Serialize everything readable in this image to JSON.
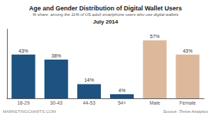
{
  "chart_data": {
    "type": "bar",
    "title": "Age and Gender Distribution of Digital Wallet Users",
    "subtitle": "% share, among the 11% of US adult smartphone users who use digital wallets",
    "annotations": [
      "July 2014",
      "Source: Thrive Analytics",
      "MARKETINGCHARTS.COM"
    ],
    "categories": [
      "18-29",
      "30-43",
      "44-53",
      "54+",
      "Male",
      "Female"
    ],
    "values": [
      43,
      38,
      14,
      4,
      57,
      43
    ],
    "value_labels": [
      "43%",
      "38%",
      "14%",
      "4%",
      "57%",
      "43%"
    ],
    "colors": [
      "#1e5280",
      "#1e5280",
      "#1e5280",
      "#1e5280",
      "#ddb89a",
      "#ddb89a"
    ],
    "ylim": [
      0,
      68
    ],
    "grid": false,
    "data_labels": true,
    "tick_labels": "x"
  }
}
